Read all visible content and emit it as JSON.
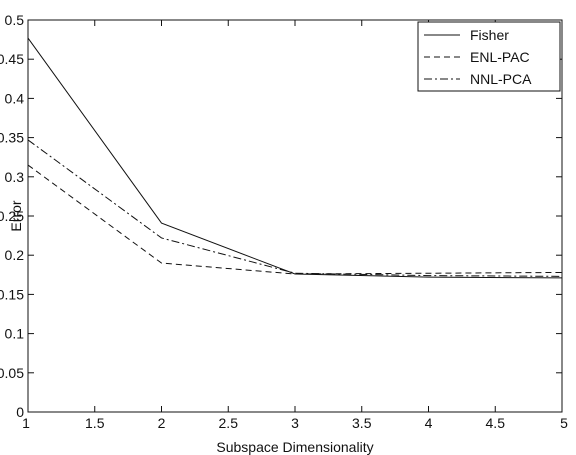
{
  "chart_data": {
    "type": "line",
    "xlabel": "Subspace Dimensionality",
    "ylabel": "Error",
    "xlim": [
      1,
      5
    ],
    "ylim": [
      0,
      0.5
    ],
    "xticks": [
      "1",
      "1.5",
      "2",
      "2.5",
      "3",
      "3.5",
      "4",
      "4.5",
      "5"
    ],
    "yticks": [
      "0",
      "0.05",
      "0.1",
      "0.15",
      "0.2",
      "0.25",
      "0.3",
      "0.35",
      "0.4",
      "0.45",
      "0.5"
    ],
    "grid": false,
    "legend_position": "top-right",
    "x": [
      1,
      2,
      3,
      4,
      5
    ],
    "series": [
      {
        "name": "Fisher",
        "style": "solid",
        "values": [
          0.477,
          0.241,
          0.176,
          0.172,
          0.171
        ]
      },
      {
        "name": "ENL-PAC",
        "style": "dashed",
        "values": [
          0.315,
          0.19,
          0.176,
          0.177,
          0.178
        ]
      },
      {
        "name": "NNL-PCA",
        "style": "dashdot",
        "values": [
          0.347,
          0.222,
          0.177,
          0.174,
          0.173
        ]
      }
    ]
  }
}
